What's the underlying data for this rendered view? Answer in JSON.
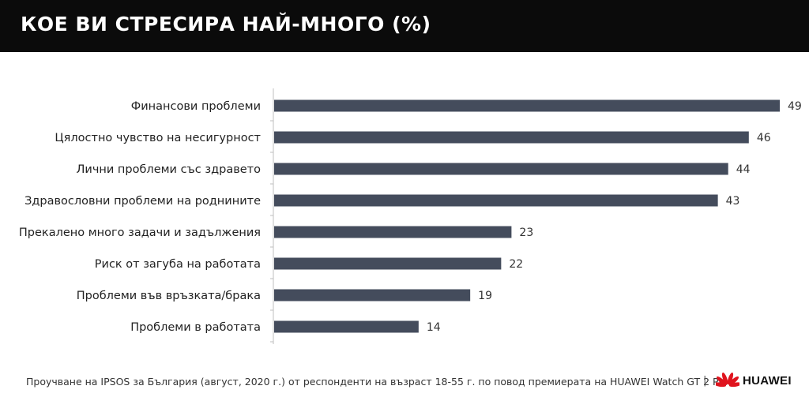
{
  "header": {
    "title": "КОЕ ВИ СТРЕСИРА НАЙ-МНОГО (%)"
  },
  "chart_data": {
    "type": "bar",
    "orientation": "horizontal",
    "title": "КОЕ ВИ СТРЕСИРА НАЙ-МНОГО (%)",
    "categories": [
      "Финансови проблеми",
      "Цялостно чувство на несигурност",
      "Лични проблеми със здравето",
      "Здравословни проблеми на роднините",
      "Прекалено много задачи и задължения",
      "Риск от загуба на работата",
      "Проблеми във връзката/брака",
      "Проблеми в работата"
    ],
    "values": [
      49,
      46,
      44,
      43,
      23,
      22,
      19,
      14
    ],
    "xlim": [
      0,
      49
    ],
    "data_labels": true,
    "grid": false,
    "bar_color": "#444c5c"
  },
  "footer": {
    "source": "Проучване на IPSOS за България (август, 2020 г.) от респонденти на възраст 18-55 г. по повод премиерата на HUAWEI Watch GT 2 Pro",
    "separator": "|",
    "brand": "HUAWEI",
    "brand_icon": "huawei-logo-icon",
    "brand_color": "#e0141e"
  }
}
